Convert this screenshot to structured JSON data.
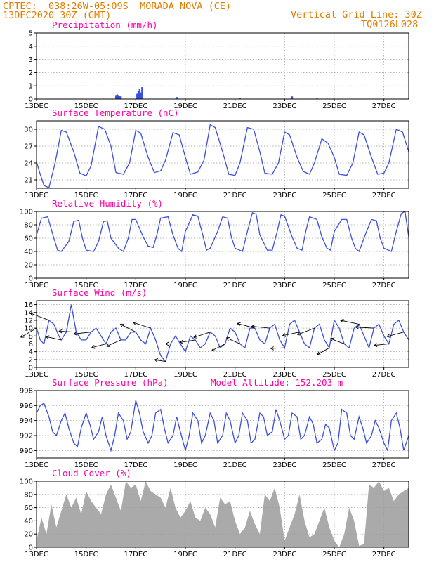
{
  "header": {
    "left_line1": "CPTEC:  038:26W-05:09S  MORADA NOVA (CE)",
    "left_line2": "13DEC2020 30Z (GMT)",
    "right_line1": "Vertical Grid Line: 30Z",
    "right_line2": "TQ0126L028"
  },
  "x_axis": {
    "ticks": [
      "13DEC",
      "15DEC",
      "17DEC",
      "19DEC",
      "21DEC",
      "23DEC",
      "25DEC",
      "27DEC"
    ],
    "days": 15
  },
  "colors": {
    "header": "#e27d00",
    "title": "#ff00aa",
    "series": "#3b4ee0",
    "cloud": "#aaaaaa"
  },
  "chart_data": [
    {
      "id": "precipitation",
      "type": "bar",
      "title": "Precipitation (mm/h)",
      "ylim": [
        0,
        5
      ],
      "yticks": [
        0,
        1,
        2,
        3,
        4,
        5
      ],
      "bars": [
        [
          3.2,
          0.3
        ],
        [
          3.25,
          0.35
        ],
        [
          3.3,
          0.3
        ],
        [
          3.35,
          0.25
        ],
        [
          3.4,
          0.2
        ],
        [
          4.05,
          0.4
        ],
        [
          4.1,
          0.6
        ],
        [
          4.15,
          0.8
        ],
        [
          4.2,
          0.5
        ],
        [
          4.25,
          0.9
        ],
        [
          5.65,
          0.15
        ],
        [
          8.2,
          0.05
        ],
        [
          10.3,
          0.2
        ],
        [
          11.3,
          0.05
        ]
      ]
    },
    {
      "id": "temperature",
      "type": "line",
      "title": "Surface Temperature (nC)",
      "ylim": [
        19.5,
        31.5
      ],
      "yticks": [
        21,
        24,
        27,
        30
      ],
      "x": [
        0,
        0.15,
        0.3,
        0.5,
        0.75,
        1.0,
        1.2,
        1.5,
        1.75,
        2.0,
        2.2,
        2.5,
        2.75,
        3.0,
        3.2,
        3.5,
        3.75,
        4.0,
        4.2,
        4.5,
        4.75,
        5.0,
        5.2,
        5.5,
        5.75,
        6.0,
        6.2,
        6.5,
        6.75,
        7.0,
        7.2,
        7.5,
        7.75,
        8.0,
        8.2,
        8.5,
        8.75,
        9.0,
        9.2,
        9.5,
        9.75,
        10.0,
        10.2,
        10.5,
        10.75,
        11.0,
        11.2,
        11.5,
        11.75,
        12.0,
        12.2,
        12.5,
        12.75,
        13.0,
        13.2,
        13.5,
        13.75,
        14.0,
        14.2,
        14.5,
        14.75,
        15.0
      ],
      "y": [
        24.2,
        22,
        20,
        19.6,
        24,
        29.8,
        29.5,
        26,
        22.2,
        21.7,
        23.5,
        30.5,
        30,
        27,
        22.3,
        22,
        24,
        29.8,
        29.3,
        25,
        22.3,
        22.6,
        24.5,
        29.4,
        29,
        25,
        22,
        22.4,
        24.5,
        30.8,
        30.3,
        26,
        22,
        21.8,
        24,
        30.3,
        30,
        26,
        22.2,
        22,
        24,
        29.5,
        29,
        25,
        22.5,
        22,
        24,
        28.3,
        27.5,
        25,
        22,
        21.8,
        24,
        29.5,
        29,
        25,
        22,
        22.2,
        24,
        30,
        29.5,
        26
      ]
    },
    {
      "id": "humidity",
      "type": "line",
      "title": "Relative Humidity (%)",
      "ylim": [
        0,
        100
      ],
      "yticks": [
        0,
        20,
        40,
        60,
        80,
        100
      ],
      "x": [
        0,
        0.2,
        0.45,
        0.7,
        0.85,
        1.0,
        1.3,
        1.5,
        1.7,
        1.85,
        2.0,
        2.3,
        2.5,
        2.7,
        2.85,
        3.0,
        3.3,
        3.5,
        3.7,
        3.85,
        4.0,
        4.3,
        4.5,
        4.7,
        4.85,
        5.0,
        5.3,
        5.5,
        5.7,
        5.85,
        6.0,
        6.3,
        6.5,
        6.7,
        6.85,
        7.0,
        7.3,
        7.5,
        7.7,
        7.85,
        8.0,
        8.3,
        8.5,
        8.7,
        8.85,
        9.0,
        9.3,
        9.5,
        9.7,
        9.85,
        10.0,
        10.3,
        10.5,
        10.7,
        10.85,
        11.0,
        11.3,
        11.5,
        11.7,
        11.85,
        12.0,
        12.3,
        12.5,
        12.7,
        12.85,
        13.0,
        13.3,
        13.5,
        13.7,
        13.85,
        14.0,
        14.3,
        14.5,
        14.7,
        14.85,
        15.0
      ],
      "y": [
        65,
        90,
        92,
        60,
        42,
        40,
        55,
        85,
        87,
        60,
        42,
        40,
        55,
        85,
        86,
        60,
        45,
        40,
        60,
        88,
        88,
        62,
        48,
        46,
        65,
        90,
        92,
        65,
        45,
        40,
        70,
        95,
        93,
        65,
        42,
        45,
        70,
        92,
        90,
        62,
        45,
        40,
        70,
        98,
        96,
        65,
        42,
        42,
        70,
        95,
        93,
        62,
        45,
        42,
        70,
        92,
        88,
        62,
        45,
        42,
        70,
        88,
        88,
        60,
        45,
        40,
        70,
        88,
        86,
        60,
        45,
        40,
        70,
        97,
        100,
        62
      ]
    },
    {
      "id": "wind",
      "type": "line",
      "title": "Surface Wind (m/s)",
      "ylim": [
        0,
        17
      ],
      "yticks": [
        0,
        2,
        4,
        6,
        8,
        10,
        12,
        14,
        16
      ],
      "x": [
        0,
        0.15,
        0.3,
        0.5,
        0.7,
        0.9,
        1.0,
        1.2,
        1.4,
        1.6,
        1.8,
        2.0,
        2.2,
        2.4,
        2.6,
        2.8,
        3.0,
        3.2,
        3.4,
        3.6,
        3.8,
        4.0,
        4.2,
        4.4,
        4.6,
        4.8,
        5.0,
        5.2,
        5.4,
        5.6,
        5.8,
        6.0,
        6.2,
        6.4,
        6.6,
        6.8,
        7.0,
        7.2,
        7.4,
        7.6,
        7.8,
        8.0,
        8.2,
        8.4,
        8.6,
        8.8,
        9.0,
        9.2,
        9.4,
        9.6,
        9.8,
        10.0,
        10.2,
        10.4,
        10.6,
        10.8,
        11.0,
        11.2,
        11.4,
        11.6,
        11.8,
        12.0,
        12.2,
        12.4,
        12.6,
        12.8,
        13.0,
        13.2,
        13.4,
        13.6,
        13.8,
        14.0,
        14.2,
        14.4,
        14.6,
        14.8,
        15.0
      ],
      "y": [
        10,
        7,
        6,
        12,
        11,
        8,
        7,
        9,
        16,
        9,
        7,
        7,
        9,
        10,
        8,
        6,
        9,
        10,
        7,
        7,
        9,
        9,
        7,
        6,
        10,
        7,
        3,
        1.5,
        6,
        8,
        6,
        4,
        8,
        7,
        5,
        6,
        9,
        8,
        5,
        6,
        10,
        9,
        6,
        5,
        10,
        10,
        7,
        6,
        10,
        11,
        7,
        5,
        11,
        12,
        9,
        6,
        5,
        10,
        11,
        7,
        5,
        12,
        10,
        6,
        5,
        10,
        11,
        8,
        5,
        10,
        11,
        8,
        6,
        11,
        12,
        9,
        7
      ]
    },
    {
      "id": "pressure",
      "type": "line",
      "title": "Surface Pressure (hPa)",
      "annotation": "Model Altitude: 152.203 m",
      "ylim": [
        989,
        998
      ],
      "yticks": [
        990,
        992,
        994,
        996,
        998
      ],
      "x": [
        0,
        0.15,
        0.3,
        0.5,
        0.65,
        0.8,
        1.0,
        1.15,
        1.3,
        1.5,
        1.65,
        1.8,
        2.0,
        2.15,
        2.3,
        2.5,
        2.65,
        2.8,
        3.0,
        3.15,
        3.3,
        3.5,
        3.65,
        3.8,
        4.0,
        4.15,
        4.3,
        4.5,
        4.65,
        4.8,
        5.0,
        5.15,
        5.3,
        5.5,
        5.65,
        5.8,
        6.0,
        6.15,
        6.3,
        6.5,
        6.65,
        6.8,
        7.0,
        7.15,
        7.3,
        7.5,
        7.65,
        7.8,
        8.0,
        8.15,
        8.3,
        8.5,
        8.65,
        8.8,
        9.0,
        9.15,
        9.3,
        9.5,
        9.65,
        9.8,
        10.0,
        10.15,
        10.3,
        10.5,
        10.65,
        10.8,
        11.0,
        11.15,
        11.3,
        11.5,
        11.65,
        11.8,
        12.0,
        12.15,
        12.3,
        12.5,
        12.65,
        12.8,
        13.0,
        13.15,
        13.3,
        13.5,
        13.65,
        13.8,
        14.0,
        14.15,
        14.3,
        14.5,
        14.65,
        14.8,
        15.0
      ],
      "y": [
        995,
        996,
        996.3,
        994.5,
        992.5,
        992,
        994,
        995,
        993,
        991,
        990.5,
        993,
        995,
        993.5,
        991.5,
        992.5,
        994.5,
        992,
        990,
        992,
        995,
        994,
        991.5,
        992.5,
        996.7,
        995,
        992.5,
        991,
        992,
        995,
        995.5,
        993,
        991,
        992,
        994.5,
        992.5,
        990,
        992,
        995,
        994,
        991,
        992,
        995,
        994,
        991,
        992,
        995,
        994,
        991,
        992,
        995,
        994,
        991,
        991.5,
        995,
        994.5,
        992,
        992.5,
        995.5,
        994,
        991.5,
        992,
        995,
        994.5,
        991.5,
        992,
        994.5,
        993.5,
        991,
        991.5,
        993.5,
        993,
        990,
        991,
        995.5,
        995,
        992,
        991.5,
        994.5,
        993,
        991,
        992,
        994,
        993,
        991,
        990,
        994,
        995,
        993,
        990,
        992
      ]
    },
    {
      "id": "cloud",
      "type": "area",
      "title": "Cloud Cover (%)",
      "ylim": [
        0,
        100
      ],
      "yticks": [
        0,
        20,
        40,
        60,
        80,
        100
      ],
      "x": [
        0,
        0.2,
        0.4,
        0.6,
        0.8,
        1.0,
        1.2,
        1.4,
        1.6,
        1.8,
        2.0,
        2.2,
        2.4,
        2.6,
        2.8,
        3.0,
        3.2,
        3.4,
        3.6,
        3.8,
        4.0,
        4.2,
        4.4,
        4.6,
        4.8,
        5.0,
        5.2,
        5.4,
        5.6,
        5.8,
        6.0,
        6.2,
        6.4,
        6.6,
        6.8,
        7.0,
        7.2,
        7.4,
        7.6,
        7.8,
        8.0,
        8.2,
        8.4,
        8.6,
        8.8,
        9.0,
        9.2,
        9.4,
        9.6,
        9.8,
        10.0,
        10.2,
        10.4,
        10.6,
        10.8,
        11.0,
        11.2,
        11.4,
        11.6,
        11.8,
        12.0,
        12.2,
        12.4,
        12.6,
        12.8,
        13.0,
        13.2,
        13.4,
        13.6,
        13.8,
        14.0,
        14.2,
        14.4,
        14.6,
        14.8,
        15.0
      ],
      "y": [
        10,
        45,
        20,
        65,
        30,
        55,
        80,
        60,
        75,
        50,
        85,
        70,
        60,
        50,
        80,
        95,
        75,
        55,
        100,
        90,
        95,
        70,
        100,
        85,
        80,
        75,
        60,
        90,
        60,
        45,
        55,
        70,
        45,
        40,
        60,
        50,
        30,
        75,
        65,
        70,
        40,
        20,
        30,
        55,
        35,
        20,
        80,
        70,
        90,
        60,
        10,
        30,
        50,
        80,
        40,
        15,
        20,
        40,
        60,
        30,
        10,
        0,
        20,
        60,
        40,
        2,
        5,
        95,
        90,
        100,
        85,
        90,
        70,
        80,
        85,
        90
      ]
    }
  ]
}
